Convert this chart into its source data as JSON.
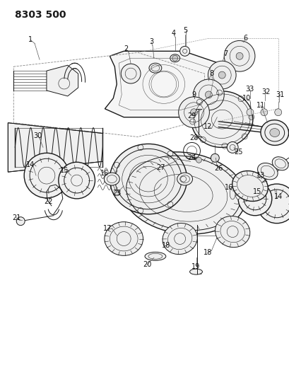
{
  "title": "8303 500",
  "bg_color": "#ffffff",
  "line_color": "#1a1a1a",
  "label_color": "#111111",
  "title_fontsize": 10,
  "label_fontsize": 7,
  "fig_width": 4.1,
  "fig_height": 5.33,
  "dpi": 100
}
